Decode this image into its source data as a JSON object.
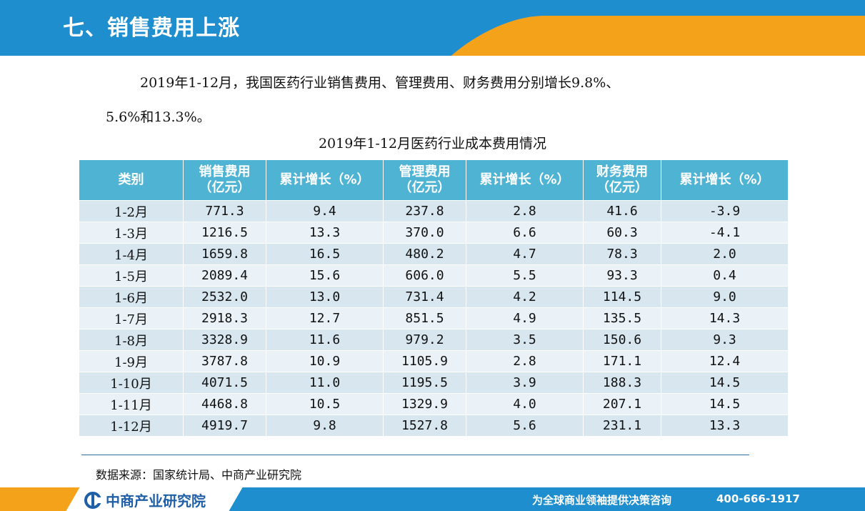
{
  "header": {
    "title": "七、销售费用上涨"
  },
  "intro": {
    "line1": "2019年1-12月，我国医药行业销售费用、管理费用、财务费用分别增长9.8%、",
    "line2": "5.6%和13.3%。"
  },
  "table": {
    "caption": "2019年1-12月医药行业成本费用情况",
    "headers": [
      [
        "类别"
      ],
      [
        "销售费用",
        "（亿元）"
      ],
      [
        "累计增长（%）"
      ],
      [
        "管理费用",
        "（亿元）"
      ],
      [
        "累计增长（%）"
      ],
      [
        "财务费用",
        "（亿元）"
      ],
      [
        "累计增长（%）"
      ]
    ],
    "rows": [
      [
        "1-2月",
        "771.3",
        "9.4",
        "237.8",
        "2.8",
        "41.6",
        "-3.9"
      ],
      [
        "1-3月",
        "1216.5",
        "13.3",
        "370.0",
        "6.6",
        "60.3",
        "-4.1"
      ],
      [
        "1-4月",
        "1659.8",
        "16.5",
        "480.2",
        "4.7",
        "78.3",
        "2.0"
      ],
      [
        "1-5月",
        "2089.4",
        "15.6",
        "606.0",
        "5.5",
        "93.3",
        "0.4"
      ],
      [
        "1-6月",
        "2532.0",
        "13.0",
        "731.4",
        "4.2",
        "114.5",
        "9.0"
      ],
      [
        "1-7月",
        "2918.3",
        "12.7",
        "851.5",
        "4.9",
        "135.5",
        "14.3"
      ],
      [
        "1-8月",
        "3328.9",
        "11.6",
        "979.2",
        "3.5",
        "150.6",
        "9.3"
      ],
      [
        "1-9月",
        "3787.8",
        "10.9",
        "1105.9",
        "2.8",
        "171.1",
        "12.4"
      ],
      [
        "1-10月",
        "4071.5",
        "11.0",
        "1195.5",
        "3.9",
        "188.3",
        "14.5"
      ],
      [
        "1-11月",
        "4468.8",
        "10.5",
        "1329.9",
        "4.0",
        "207.1",
        "14.5"
      ],
      [
        "1-12月",
        "4919.7",
        "9.8",
        "1527.8",
        "5.6",
        "231.1",
        "13.3"
      ]
    ]
  },
  "source": "数据来源：国家统计局、中商产业研究院",
  "footer": {
    "logo_text": "中商产业研究院",
    "slogan": "为全球商业领袖提供决策咨询",
    "phone": "400-666-1917"
  },
  "colors": {
    "brand_blue": "#1f8ecf",
    "accent_orange": "#f5a21b",
    "table_header": "#4fb3d4"
  },
  "icons": {
    "logo": "zhongshang-logo-icon"
  }
}
